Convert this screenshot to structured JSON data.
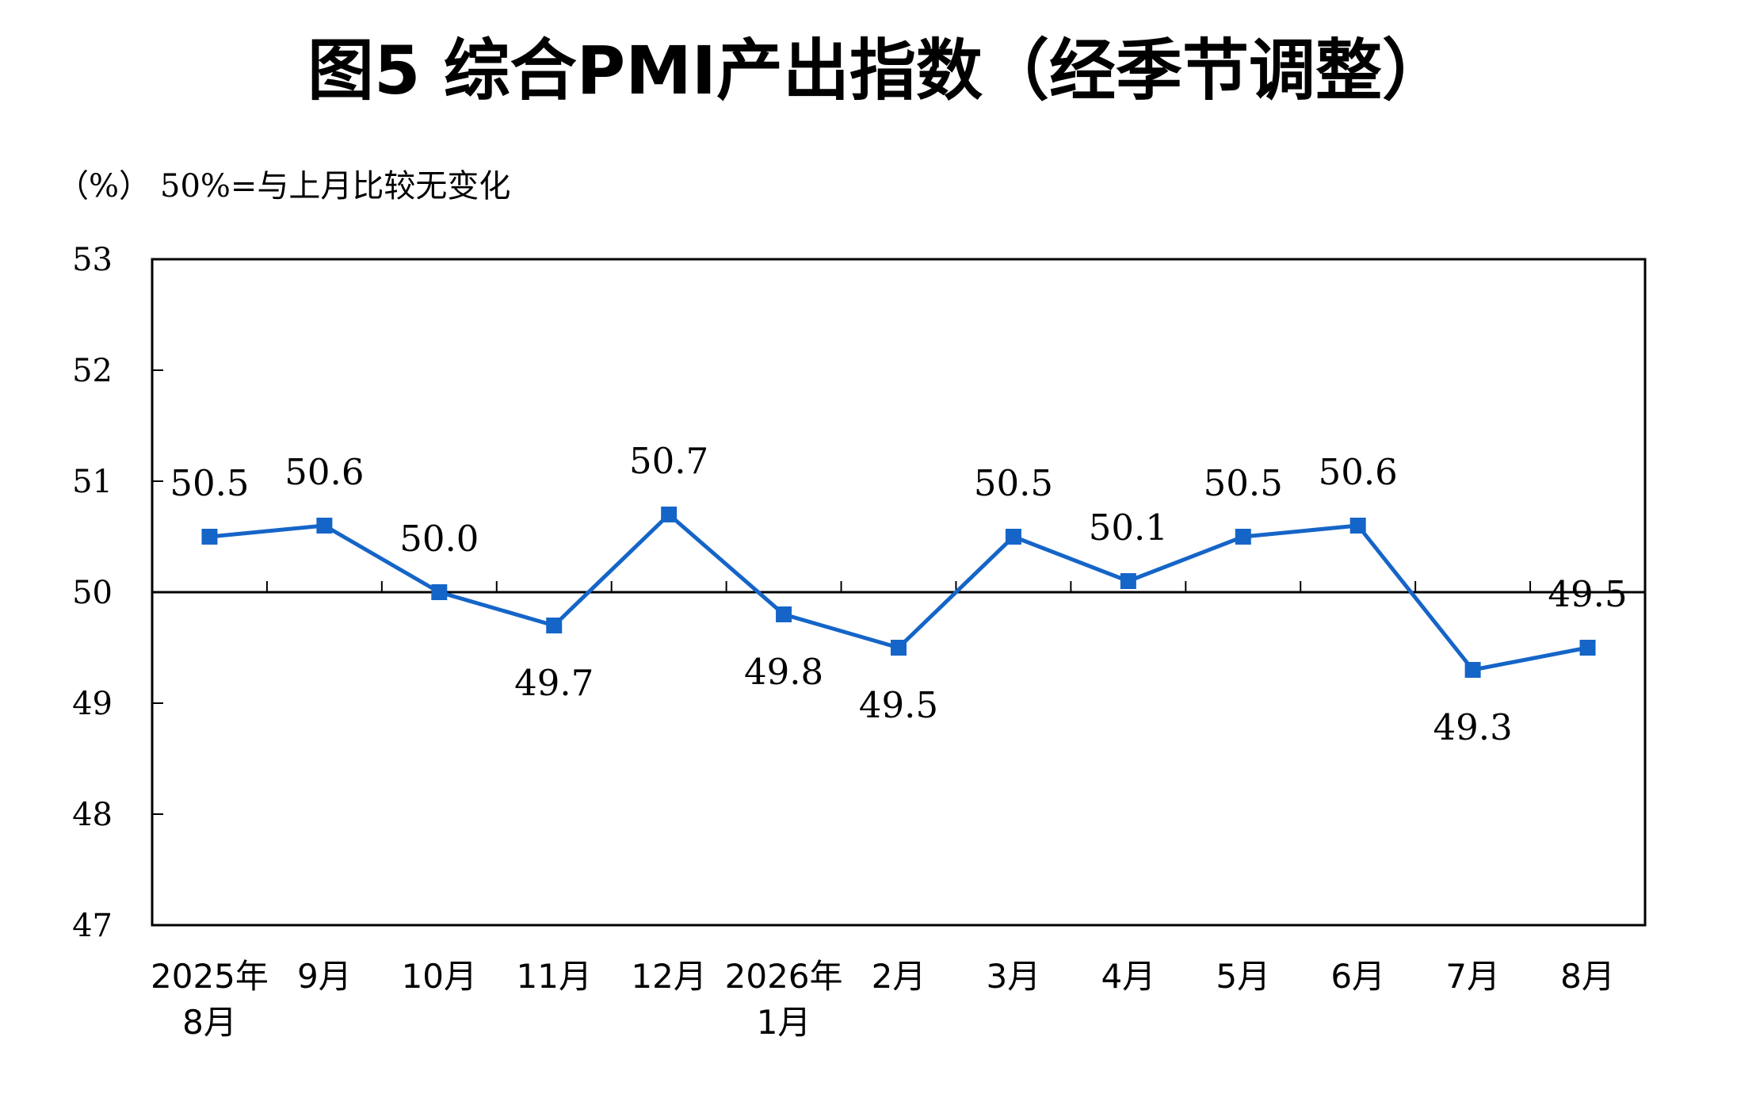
{
  "chart_data": {
    "type": "line",
    "title": "图5 综合PMI产出指数（经季节调整）",
    "unit_label": "（%）",
    "note": "50%=与上月比较无变化",
    "ylim": [
      47,
      53
    ],
    "yticks": [
      "53",
      "52",
      "51",
      "50",
      "49",
      "48",
      "47"
    ],
    "reference_line": 50,
    "categories": [
      [
        "2025年",
        "8月"
      ],
      [
        "9月"
      ],
      [
        "10月"
      ],
      [
        "11月"
      ],
      [
        "12月"
      ],
      [
        "2026年",
        "1月"
      ],
      [
        "2月"
      ],
      [
        "3月"
      ],
      [
        "4月"
      ],
      [
        "5月"
      ],
      [
        "6月"
      ],
      [
        "7月"
      ],
      [
        "8月"
      ]
    ],
    "values": [
      50.5,
      50.6,
      50.0,
      49.7,
      50.7,
      49.8,
      49.5,
      50.5,
      50.1,
      50.5,
      50.6,
      49.3,
      49.5
    ],
    "data_labels": [
      "50.5",
      "50.6",
      "50.0",
      "49.7",
      "50.7",
      "49.8",
      "49.5",
      "50.5",
      "50.1",
      "50.5",
      "50.6",
      "49.3",
      "49.5"
    ],
    "label_positions": [
      "above",
      "above",
      "above",
      "below",
      "above",
      "below",
      "below",
      "above",
      "above",
      "above",
      "above",
      "below",
      "above"
    ],
    "grid": false,
    "colors": {
      "line": "#1565c8",
      "marker": "#1565c8",
      "axis": "#000000"
    }
  }
}
